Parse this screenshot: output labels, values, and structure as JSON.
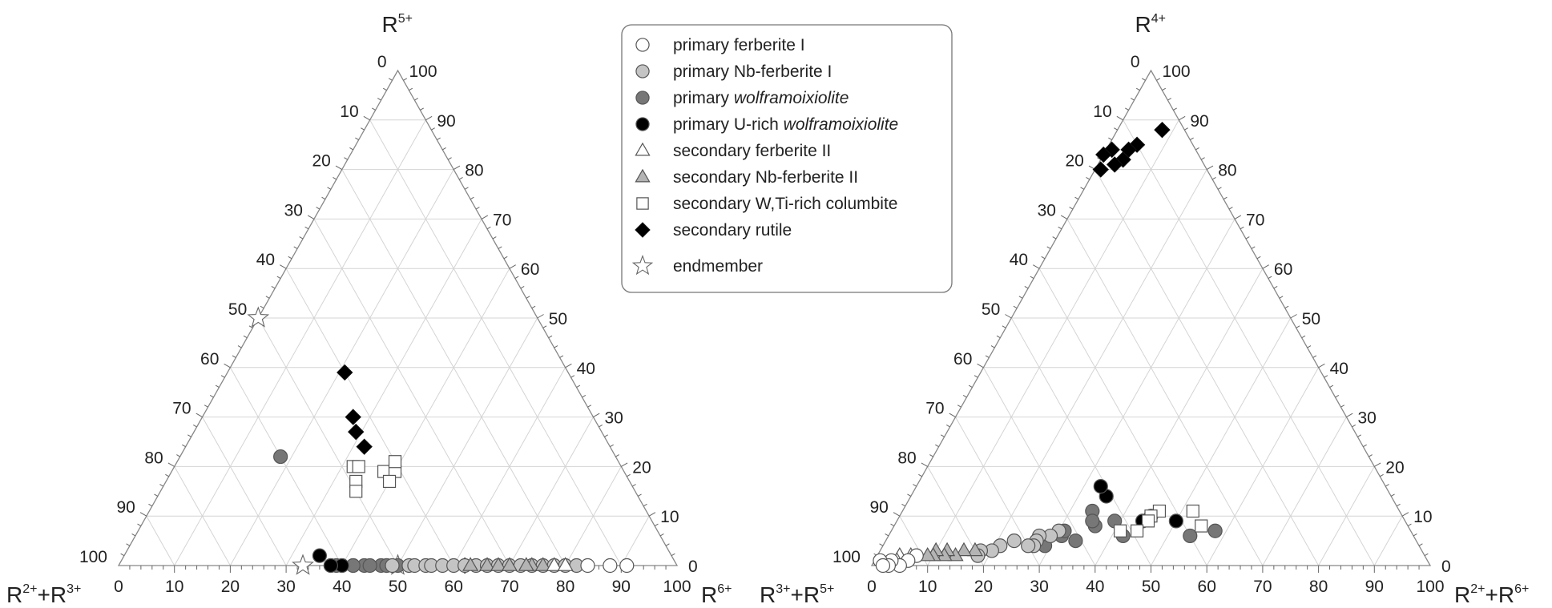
{
  "legend": {
    "position": "top-center",
    "entries": [
      {
        "key": "pfI",
        "parts": [
          {
            "t": "primary ferberite I"
          }
        ],
        "marker": "circle",
        "fill": "#ffffff"
      },
      {
        "key": "pnfI",
        "parts": [
          {
            "t": "primary Nb-ferberite I"
          }
        ],
        "marker": "circle",
        "fill": "#c4c4c4"
      },
      {
        "key": "pw",
        "parts": [
          {
            "t": "primary "
          },
          {
            "t": "wolframoixiolite",
            "i": true
          }
        ],
        "marker": "circle",
        "fill": "#777777"
      },
      {
        "key": "puw",
        "parts": [
          {
            "t": "primary U-rich "
          },
          {
            "t": "wolframoixiolite",
            "i": true
          }
        ],
        "marker": "circle",
        "fill": "#000000"
      },
      {
        "key": "sfII",
        "parts": [
          {
            "t": "secondary ferberite II"
          }
        ],
        "marker": "triangle",
        "fill": "#ffffff"
      },
      {
        "key": "snfII",
        "parts": [
          {
            "t": "secondary Nb-ferberite II"
          }
        ],
        "marker": "triangle",
        "fill": "#b4b4b4"
      },
      {
        "key": "swc",
        "parts": [
          {
            "t": "secondary W,Ti-rich columbite"
          }
        ],
        "marker": "square",
        "fill": "#ffffff"
      },
      {
        "key": "sr",
        "parts": [
          {
            "t": "secondary rutile"
          }
        ],
        "marker": "diamond",
        "fill": "#000000"
      },
      {
        "key": "em",
        "parts": [
          {
            "t": "endmember"
          }
        ],
        "marker": "star",
        "fill": "#ffffff"
      }
    ]
  },
  "chart_data": [
    {
      "type": "ternary",
      "apex_labels": {
        "top": {
          "base": "R",
          "sup": "5+"
        },
        "left": {
          "base": "R",
          "sup": "2+",
          "mid": "+R",
          "sup2": "3+"
        },
        "right": {
          "base": "R",
          "sup": "6+"
        }
      },
      "ticks": [
        "0",
        "10",
        "20",
        "30",
        "40",
        "50",
        "60",
        "70",
        "80",
        "90",
        "100"
      ],
      "grid": true,
      "series": [
        {
          "key": "em",
          "points": [
            [
              33,
              67
            ],
            [
              50,
              50
            ],
            [
              0,
              50
            ]
          ]
        },
        {
          "key": "sr",
          "points": [
            [
              21,
              40
            ],
            [
              27,
              43
            ],
            [
              29,
              44
            ],
            [
              32,
              44
            ],
            [
              62,
              38
            ]
          ]
        },
        {
          "key": "swc",
          "points": [
            [
              32,
              48
            ],
            [
              33,
              47
            ],
            [
              34,
              49
            ],
            [
              35,
              50
            ],
            [
              38,
              43
            ],
            [
              40,
              41
            ],
            [
              39,
              40
            ],
            [
              40,
              43
            ]
          ]
        },
        {
          "key": "pw",
          "points": [
            [
              18,
              60
            ],
            [
              39,
              63
            ],
            [
              40,
              64
            ],
            [
              38,
              66
            ],
            [
              42,
              67
            ],
            [
              44,
              68
            ],
            [
              42,
              70
            ],
            [
              47,
              71
            ],
            [
              45,
              72
            ],
            [
              48,
              74
            ],
            [
              50,
              75
            ],
            [
              48,
              73
            ]
          ]
        },
        {
          "key": "puw",
          "points": [
            [
              35,
              63
            ],
            [
              40,
              64
            ],
            [
              38,
              67
            ]
          ]
        },
        {
          "key": "pnfI",
          "points": [
            [
              49,
              78
            ],
            [
              52,
              80
            ],
            [
              53,
              81
            ],
            [
              55,
              82
            ],
            [
              56,
              83
            ],
            [
              58,
              84
            ],
            [
              60,
              86
            ],
            [
              62,
              87
            ],
            [
              64,
              88
            ],
            [
              66,
              89
            ],
            [
              68,
              90
            ],
            [
              70,
              91
            ],
            [
              72,
              92
            ],
            [
              74,
              93
            ],
            [
              76,
              94
            ],
            [
              78,
              95
            ],
            [
              80,
              96
            ],
            [
              82,
              97
            ]
          ]
        },
        {
          "key": "snfII",
          "points": [
            [
              63,
              88
            ],
            [
              66,
              89
            ],
            [
              68,
              91
            ],
            [
              70,
              91
            ],
            [
              74,
              92
            ],
            [
              73,
              93
            ],
            [
              76,
              94
            ]
          ]
        },
        {
          "key": "sfII",
          "points": [
            [
              78,
              95
            ],
            [
              80,
              96
            ]
          ]
        },
        {
          "key": "pfI",
          "points": [
            [
              84,
              97
            ],
            [
              88,
              99
            ],
            [
              91,
              99
            ]
          ]
        }
      ]
    },
    {
      "type": "ternary",
      "apex_labels": {
        "top": {
          "base": "R",
          "sup": "4+"
        },
        "left": {
          "base": "R",
          "sup": "3+",
          "mid": "+R",
          "sup2": "5+"
        },
        "right": {
          "base": "R",
          "sup": "2+",
          "mid": "+R",
          "sup2": "6+"
        }
      },
      "ticks": [
        "0",
        "10",
        "20",
        "30",
        "40",
        "50",
        "60",
        "70",
        "80",
        "90",
        "100"
      ],
      "grid": true,
      "series": [
        {
          "key": "sr",
          "points": [
            [
              88,
              4
            ],
            [
              85,
              10
            ],
            [
              84,
              12
            ],
            [
              82,
              14
            ],
            [
              84,
              15
            ],
            [
              81,
              16
            ],
            [
              83,
              17
            ],
            [
              80,
              19
            ]
          ]
        },
        {
          "key": "puw",
          "points": [
            [
              9,
              41
            ],
            [
              10,
              45
            ],
            [
              9,
              47
            ],
            [
              14,
              51
            ],
            [
              16,
              51
            ]
          ]
        },
        {
          "key": "pw",
          "points": [
            [
              7,
              35
            ],
            [
              6,
              40
            ],
            [
              6,
              52
            ],
            [
              9,
              52
            ],
            [
              11,
              55
            ],
            [
              8,
              56
            ],
            [
              9,
              56
            ],
            [
              5,
              61
            ],
            [
              6,
              63
            ],
            [
              7,
              62
            ],
            [
              4,
              67
            ]
          ]
        },
        {
          "key": "pnfI",
          "points": [
            [
              7,
              63
            ],
            [
              6,
              65
            ],
            [
              6,
              67
            ],
            [
              5,
              68
            ],
            [
              4,
              69
            ],
            [
              4,
              70
            ],
            [
              5,
              72
            ],
            [
              4,
              75
            ],
            [
              3,
              77
            ],
            [
              3,
              79
            ],
            [
              2,
              80
            ]
          ]
        },
        {
          "key": "snfII",
          "points": [
            [
              3,
              80
            ],
            [
              3,
              82
            ],
            [
              2,
              84
            ],
            [
              3,
              85
            ],
            [
              2,
              86
            ],
            [
              3,
              87
            ],
            [
              2,
              88
            ],
            [
              2,
              89
            ]
          ]
        },
        {
          "key": "sfII",
          "points": [
            [
              2,
              92
            ],
            [
              2,
              94
            ],
            [
              1,
              95
            ]
          ]
        },
        {
          "key": "pfI",
          "points": [
            [
              2,
              91
            ],
            [
              1,
              93
            ],
            [
              0,
              95
            ],
            [
              1,
              96
            ],
            [
              0,
              97
            ],
            [
              1,
              98
            ],
            [
              0,
              98
            ]
          ]
        },
        {
          "key": "swc",
          "points": [
            [
              8,
              37
            ],
            [
              11,
              37
            ],
            [
              11,
              43
            ],
            [
              10,
              45
            ],
            [
              9,
              46
            ],
            [
              7,
              49
            ],
            [
              7,
              52
            ]
          ]
        }
      ]
    }
  ]
}
